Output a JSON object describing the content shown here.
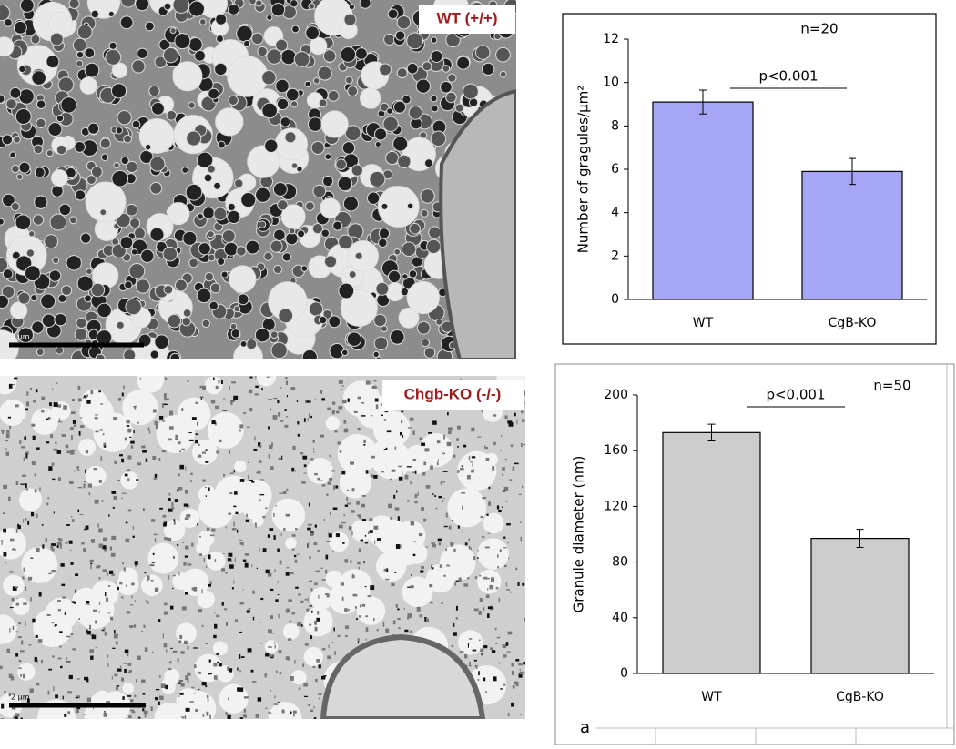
{
  "images": [
    {
      "label": "WT (+/+)",
      "scale_bar": "2 µm"
    },
    {
      "label": "Chgb-KO (-/-)",
      "scale_bar": "2 µm"
    }
  ],
  "panel_letter": "a",
  "chart_data": [
    {
      "type": "bar",
      "ylabel": "Number of gragules/µm²",
      "annotations": [
        "n=20",
        "p<0.001"
      ],
      "categories": [
        "WT",
        "CgB-KO"
      ],
      "values": [
        9.1,
        5.9
      ],
      "errors": [
        0.55,
        0.6
      ],
      "color": "#a6a6f7",
      "ylim": [
        0,
        12
      ],
      "yticks": [
        0,
        2,
        4,
        6,
        8,
        10,
        12
      ]
    },
    {
      "type": "bar",
      "ylabel": "Granule diameter (nm)",
      "annotations": [
        "n=50",
        "p<0.001"
      ],
      "categories": [
        "WT",
        "CgB-KO"
      ],
      "values": [
        173,
        97
      ],
      "errors": [
        6,
        6.5
      ],
      "color": "#cccccc",
      "ylim": [
        0,
        200
      ],
      "yticks": [
        0,
        40,
        80,
        120,
        160,
        200
      ]
    }
  ]
}
